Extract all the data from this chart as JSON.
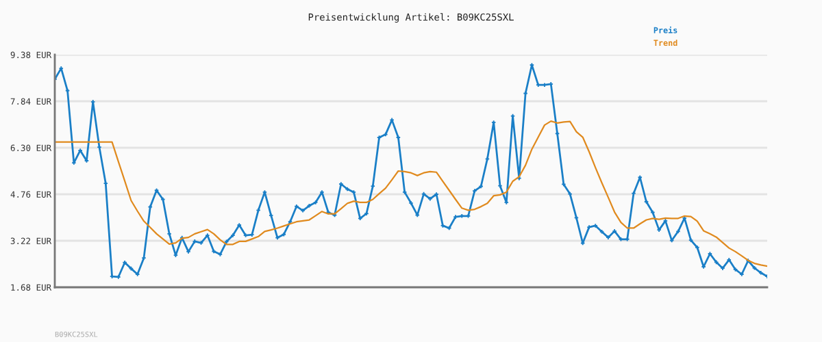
{
  "chart_data": {
    "type": "line",
    "title": "Preisentwicklung Artikel: B09KC25SXL",
    "categories": [
      null,
      null,
      null,
      null,
      null,
      null,
      null,
      null,
      null,
      null,
      null,
      null,
      null,
      null,
      null,
      null,
      null,
      null,
      null,
      null,
      null,
      null,
      null,
      null,
      null,
      null,
      null,
      null,
      null,
      null,
      null,
      null,
      null,
      null,
      null,
      null,
      null,
      null,
      null,
      null,
      null,
      null,
      null,
      null,
      null,
      null,
      null,
      null,
      null,
      null,
      null,
      null,
      null,
      null,
      null,
      null,
      null,
      null,
      null,
      null,
      null,
      null,
      null,
      null,
      null,
      null,
      null,
      null,
      null,
      null,
      null,
      null,
      null,
      null,
      null,
      null,
      null,
      null,
      null,
      null,
      null,
      null,
      null,
      null,
      null,
      null,
      null,
      null,
      null,
      null,
      null,
      null,
      null,
      null,
      null,
      null,
      null,
      null,
      null,
      null,
      null,
      null,
      null,
      null,
      null,
      null,
      null,
      null,
      null,
      null,
      null,
      null,
      null
    ],
    "series": [
      {
        "name": "Preis",
        "color": "#1a7fc7",
        "marker": "cross",
        "values": [
          8.57,
          8.93,
          8.19,
          5.8,
          6.21,
          5.87,
          7.82,
          6.32,
          5.12,
          2.04,
          2.02,
          2.5,
          2.3,
          2.11,
          2.65,
          4.34,
          4.89,
          4.59,
          3.45,
          2.74,
          3.32,
          2.86,
          3.2,
          3.15,
          3.4,
          2.87,
          2.77,
          3.19,
          3.4,
          3.74,
          3.4,
          3.42,
          4.23,
          4.83,
          4.06,
          3.32,
          3.43,
          3.85,
          4.36,
          4.22,
          4.38,
          4.49,
          4.83,
          4.16,
          4.07,
          5.1,
          4.93,
          4.83,
          3.96,
          4.12,
          5.03,
          6.64,
          6.74,
          7.22,
          6.64,
          4.83,
          4.47,
          4.07,
          4.77,
          4.61,
          4.76,
          3.72,
          3.64,
          4.01,
          4.04,
          4.04,
          4.87,
          5.02,
          5.93,
          7.14,
          5.04,
          4.49,
          7.35,
          5.29,
          8.1,
          9.04,
          8.38,
          8.38,
          8.41,
          6.77,
          5.09,
          4.77,
          3.98,
          3.14,
          3.67,
          3.72,
          3.52,
          3.33,
          3.54,
          3.27,
          3.27,
          4.79,
          5.32,
          4.51,
          4.16,
          3.58,
          3.88,
          3.23,
          3.53,
          3.97,
          3.24,
          3.0,
          2.36,
          2.79,
          2.51,
          2.31,
          2.59,
          2.27,
          2.11,
          2.56,
          2.32,
          2.16,
          2.04
        ]
      },
      {
        "name": "Trend",
        "color": "#e08a1e",
        "marker": "none",
        "values": [
          6.49,
          6.49,
          6.49,
          6.49,
          6.49,
          6.49,
          6.49,
          6.49,
          6.49,
          6.49,
          5.84,
          5.2,
          4.55,
          4.2,
          3.87,
          3.66,
          3.45,
          3.28,
          3.11,
          3.15,
          3.3,
          3.33,
          3.45,
          3.52,
          3.59,
          3.45,
          3.25,
          3.1,
          3.1,
          3.2,
          3.2,
          3.28,
          3.36,
          3.53,
          3.58,
          3.64,
          3.71,
          3.78,
          3.85,
          3.88,
          3.91,
          4.05,
          4.19,
          4.11,
          4.11,
          4.28,
          4.46,
          4.53,
          4.49,
          4.49,
          4.59,
          4.78,
          4.96,
          5.24,
          5.53,
          5.51,
          5.47,
          5.38,
          5.47,
          5.51,
          5.49,
          5.19,
          4.89,
          4.59,
          4.3,
          4.23,
          4.26,
          4.35,
          4.46,
          4.71,
          4.74,
          4.83,
          5.19,
          5.34,
          5.72,
          6.25,
          6.65,
          7.05,
          7.18,
          7.12,
          7.15,
          7.17,
          6.83,
          6.65,
          6.17,
          5.64,
          5.14,
          4.66,
          4.17,
          3.83,
          3.64,
          3.64,
          3.78,
          3.91,
          3.96,
          3.93,
          3.97,
          3.96,
          3.96,
          4.04,
          4.02,
          3.87,
          3.55,
          3.45,
          3.34,
          3.16,
          2.98,
          2.86,
          2.72,
          2.57,
          2.47,
          2.42,
          2.38
        ]
      }
    ],
    "ylim": [
      1.68,
      9.38
    ],
    "yticks": [
      {
        "value": 1.68,
        "label": "1.68 EUR"
      },
      {
        "value": 3.22,
        "label": "3.22 EUR"
      },
      {
        "value": 4.76,
        "label": "4.76 EUR"
      },
      {
        "value": 6.3,
        "label": "6.30 EUR"
      },
      {
        "value": 7.84,
        "label": "7.84 EUR"
      },
      {
        "value": 9.38,
        "label": "9.38 EUR"
      }
    ],
    "tick_labels": "y",
    "grid": "y",
    "legend": "top right",
    "line_style": "solid",
    "annotations": [
      "B09KC25SXL"
    ]
  }
}
